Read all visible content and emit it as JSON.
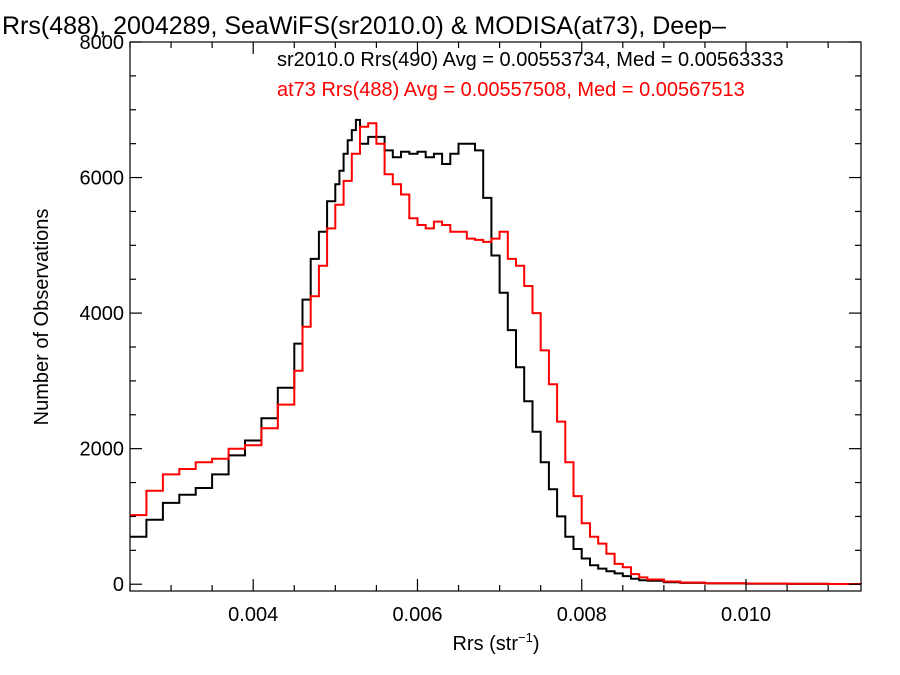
{
  "chart_data": {
    "type": "line",
    "title": "Rrs(488), 2004289, SeaWiFS(sr2010.0) & MODISA(at73), Deep–",
    "xlabel": "Rrs (str",
    "xlabel_sup": "−1",
    "xlabel_close": ")",
    "ylabel": "Number of Observations",
    "xlim": [
      0.0025,
      0.0114
    ],
    "ylim": [
      -100,
      8000
    ],
    "x_ticks": [
      0.004,
      0.006,
      0.008,
      0.01
    ],
    "x_tick_labels": [
      "0.004",
      "0.006",
      "0.008",
      "0.010"
    ],
    "y_ticks": [
      0,
      2000,
      4000,
      6000,
      8000
    ],
    "y_tick_labels": [
      "0",
      "2000",
      "4000",
      "6000",
      "8000"
    ],
    "legend_position": "top-right",
    "series": [
      {
        "name": "sr2010.0 Rrs(490) Avg = 0.00553734, Med = 0.00563333",
        "color": "#000000",
        "x": [
          0.0025,
          0.0027,
          0.0029,
          0.0031,
          0.0033,
          0.0035,
          0.0037,
          0.0039,
          0.0041,
          0.0043,
          0.0045,
          0.0046,
          0.0047,
          0.0048,
          0.0049,
          0.005,
          0.00505,
          0.0051,
          0.00515,
          0.0052,
          0.00525,
          0.0053,
          0.00535,
          0.0054,
          0.0055,
          0.0056,
          0.0057,
          0.0058,
          0.0059,
          0.006,
          0.0061,
          0.0062,
          0.0063,
          0.0064,
          0.0065,
          0.0066,
          0.0067,
          0.0068,
          0.0069,
          0.007,
          0.0071,
          0.0072,
          0.0073,
          0.0074,
          0.0075,
          0.0076,
          0.0077,
          0.0078,
          0.0079,
          0.008,
          0.0081,
          0.0082,
          0.0083,
          0.0084,
          0.0085,
          0.0086,
          0.0087,
          0.0088,
          0.009,
          0.0092,
          0.0095,
          0.01,
          0.0105,
          0.011,
          0.0114
        ],
        "y": [
          700,
          950,
          1200,
          1320,
          1420,
          1620,
          1900,
          2120,
          2450,
          2900,
          3550,
          4200,
          4800,
          5200,
          5650,
          5900,
          6100,
          6350,
          6550,
          6700,
          6850,
          6500,
          6500,
          6600,
          6600,
          6400,
          6300,
          6380,
          6350,
          6380,
          6300,
          6350,
          6200,
          6350,
          6500,
          6500,
          6400,
          5700,
          4850,
          4300,
          3750,
          3200,
          2700,
          2250,
          1800,
          1400,
          1000,
          700,
          520,
          380,
          280,
          230,
          190,
          160,
          120,
          80,
          60,
          50,
          30,
          20,
          12,
          8,
          5,
          3,
          2
        ]
      },
      {
        "name": "at73 Rrs(488) Avg = 0.00557508, Med = 0.00567513",
        "color": "#ff0000",
        "x": [
          0.0025,
          0.0027,
          0.0029,
          0.0031,
          0.0033,
          0.0035,
          0.0037,
          0.0039,
          0.0041,
          0.0043,
          0.0045,
          0.0046,
          0.0047,
          0.0048,
          0.0049,
          0.005,
          0.0051,
          0.0052,
          0.0053,
          0.0054,
          0.0055,
          0.0056,
          0.0057,
          0.0058,
          0.0059,
          0.006,
          0.0061,
          0.0062,
          0.0063,
          0.0064,
          0.0065,
          0.0066,
          0.0067,
          0.0068,
          0.0069,
          0.007,
          0.0071,
          0.0072,
          0.0073,
          0.0074,
          0.0075,
          0.0076,
          0.0077,
          0.0078,
          0.0079,
          0.008,
          0.0081,
          0.0082,
          0.0083,
          0.0084,
          0.0085,
          0.0086,
          0.0087,
          0.0088,
          0.009,
          0.0092,
          0.0095,
          0.01,
          0.0105,
          0.011,
          0.0114
        ],
        "y": [
          1020,
          1380,
          1620,
          1700,
          1800,
          1850,
          2000,
          2050,
          2300,
          2650,
          3150,
          3800,
          4250,
          4700,
          5250,
          5600,
          5950,
          6350,
          6750,
          6800,
          6500,
          6050,
          5900,
          5750,
          5400,
          5300,
          5250,
          5350,
          5300,
          5200,
          5200,
          5100,
          5080,
          5050,
          5100,
          5200,
          4800,
          4700,
          4400,
          4000,
          3450,
          2950,
          2400,
          1800,
          1300,
          900,
          700,
          600,
          450,
          300,
          250,
          150,
          100,
          70,
          40,
          25,
          15,
          10,
          6,
          4,
          3
        ]
      }
    ]
  }
}
